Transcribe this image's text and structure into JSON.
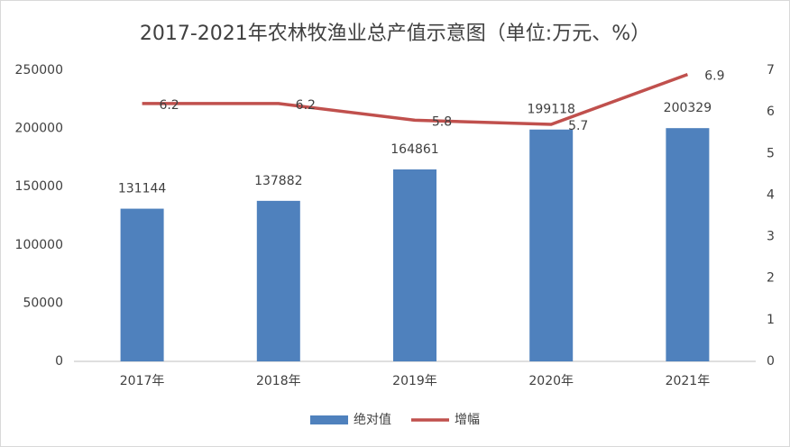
{
  "chart_data": {
    "type": "combo",
    "title": "2017-2021年农林牧渔业总产值示意图（单位:万元、%）",
    "categories": [
      "2017年",
      "2018年",
      "2019年",
      "2020年",
      "2021年"
    ],
    "series": [
      {
        "name": "绝对值",
        "type": "bar",
        "color": "#4f81bd",
        "values": [
          131144,
          137882,
          164861,
          199118,
          200329
        ]
      },
      {
        "name": "增幅",
        "type": "line",
        "axis": "y2",
        "color": "#c0504d",
        "values": [
          6.2,
          6.2,
          5.8,
          5.7,
          6.9
        ]
      }
    ],
    "ylim": [
      0,
      250000
    ],
    "yticks": [
      0,
      50000,
      100000,
      150000,
      200000,
      250000
    ],
    "y2lim": [
      0,
      7
    ],
    "y2ticks": [
      0,
      1,
      2,
      3,
      4,
      5,
      6,
      7
    ],
    "grid": false,
    "legend": "bottom"
  }
}
